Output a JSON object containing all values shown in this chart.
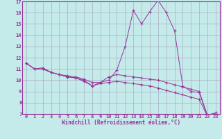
{
  "xlabel": "Windchill (Refroidissement éolien,°C)",
  "xlim": [
    -0.5,
    23.5
  ],
  "ylim": [
    7,
    17
  ],
  "yticks": [
    7,
    8,
    9,
    10,
    11,
    12,
    13,
    14,
    15,
    16,
    17
  ],
  "xticks": [
    0,
    1,
    2,
    3,
    4,
    5,
    6,
    7,
    8,
    9,
    10,
    11,
    12,
    13,
    14,
    15,
    16,
    17,
    18,
    19,
    20,
    21,
    22,
    23
  ],
  "background_color": "#c5eaea",
  "grid_color": "#a0a0bb",
  "line_color": "#993399",
  "spine_color": "#993399",
  "hours": [
    0,
    1,
    2,
    3,
    4,
    5,
    6,
    7,
    8,
    9,
    10,
    11,
    12,
    13,
    14,
    15,
    16,
    17,
    18,
    19,
    20,
    21,
    22,
    23
  ],
  "temp_line1": [
    11.5,
    11.0,
    11.0,
    10.7,
    10.5,
    10.3,
    10.2,
    10.0,
    9.5,
    9.8,
    10.0,
    10.9,
    13.0,
    16.2,
    15.0,
    16.1,
    17.1,
    16.0,
    14.4,
    9.5,
    9.0,
    8.9,
    6.8,
    7.1
  ],
  "temp_line2": [
    11.5,
    11.0,
    11.1,
    10.7,
    10.5,
    10.4,
    10.3,
    10.1,
    9.8,
    9.8,
    10.3,
    10.5,
    10.4,
    10.3,
    10.2,
    10.1,
    10.0,
    9.8,
    9.6,
    9.4,
    9.2,
    9.0,
    6.9,
    7.1
  ],
  "temp_line3": [
    11.5,
    11.0,
    11.0,
    10.7,
    10.5,
    10.3,
    10.2,
    9.9,
    9.5,
    9.7,
    9.8,
    9.9,
    9.8,
    9.7,
    9.6,
    9.5,
    9.3,
    9.1,
    8.9,
    8.7,
    8.5,
    8.3,
    6.8,
    7.0
  ],
  "tick_fontsize": 5.0,
  "xlabel_fontsize": 5.5,
  "linewidth": 0.7,
  "markersize": 3.0
}
